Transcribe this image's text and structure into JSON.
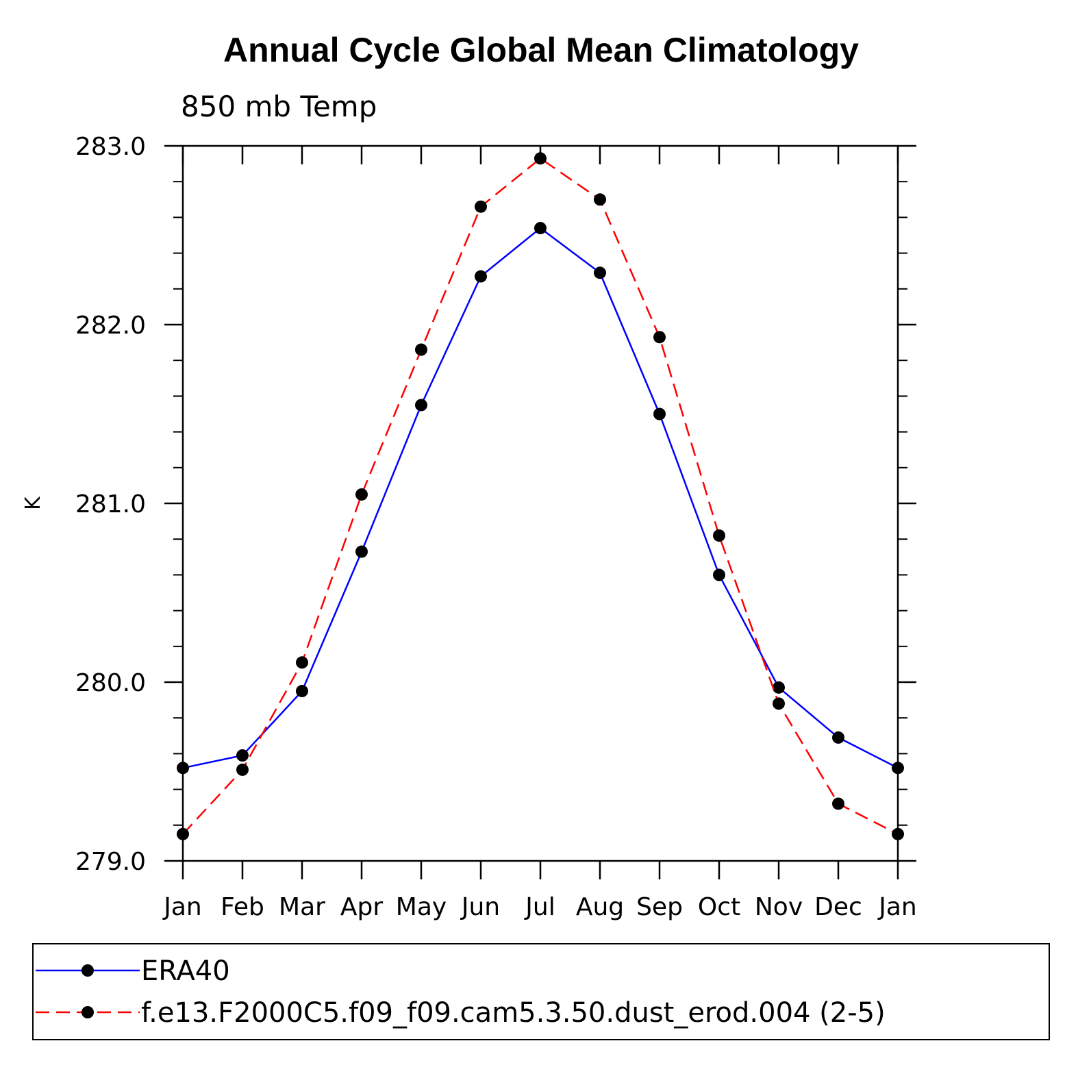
{
  "chart_data": {
    "type": "line",
    "title": "Annual Cycle Global Mean Climatology",
    "subtitle": "850 mb Temp",
    "xlabel": "",
    "ylabel": "K",
    "categories": [
      "Jan",
      "Feb",
      "Mar",
      "Apr",
      "May",
      "Jun",
      "Jul",
      "Aug",
      "Sep",
      "Oct",
      "Nov",
      "Dec",
      "Jan"
    ],
    "ylim": [
      279.0,
      283.0
    ],
    "y_ticks": [
      "279.0",
      "280.0",
      "281.0",
      "282.0",
      "283.0"
    ],
    "legend_position": "bottom",
    "series": [
      {
        "name": "ERA40",
        "color": "#0000ff",
        "style": "solid",
        "values": [
          279.52,
          279.59,
          279.95,
          280.73,
          281.55,
          282.27,
          282.54,
          282.29,
          281.5,
          280.6,
          279.97,
          279.69,
          279.52
        ]
      },
      {
        "name": "f.e13.F2000C5.f09_f09.cam5.3.50.dust_erod.004 (2-5)",
        "color": "#ff0000",
        "style": "dashed",
        "values": [
          279.15,
          279.51,
          280.11,
          281.05,
          281.86,
          282.66,
          282.93,
          282.7,
          281.93,
          280.82,
          279.88,
          279.32,
          279.15
        ]
      }
    ]
  }
}
